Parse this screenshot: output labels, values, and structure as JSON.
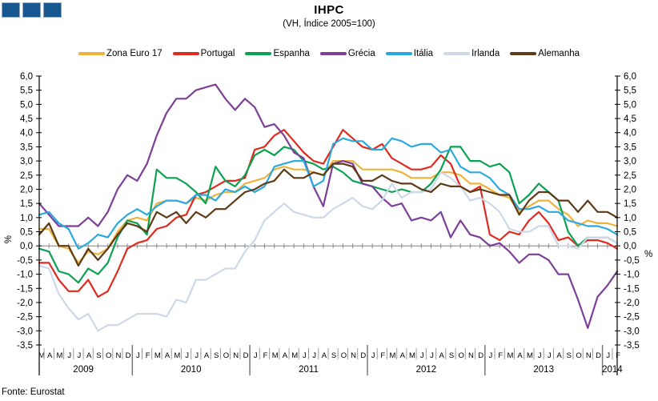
{
  "header": {
    "title": "IHPC",
    "subtitle": "(VH, Índice 2005=100)"
  },
  "logo": {
    "color": "#16578F",
    "square_count": 3
  },
  "source": {
    "label": "Fonte: Eurostat"
  },
  "chart_data": {
    "type": "line",
    "title": "IHPC",
    "subtitle": "(VH, Índice 2005=100)",
    "xlabel": "",
    "ylabel_left": "%",
    "ylabel_right": "%",
    "ylim": [
      -3.5,
      6.0
    ],
    "ytick_step": 0.5,
    "y_tick_labels": [
      "6,0",
      "5,5",
      "5,0",
      "4,5",
      "4,0",
      "3,5",
      "3,0",
      "2,5",
      "2,0",
      "1,5",
      "1,0",
      "0,5",
      "0,0",
      "-0,5",
      "-1,0",
      "-1,5",
      "-2,0",
      "-2,5",
      "-3,0",
      "-3,5"
    ],
    "grid": "zero-line-only",
    "legend_position": "top",
    "x_unit": "month (Mar 2009 - Feb 2014)",
    "x_months": [
      "M",
      "A",
      "M",
      "J",
      "J",
      "A",
      "S",
      "O",
      "N",
      "D",
      "J",
      "F",
      "M",
      "A",
      "M",
      "J",
      "J",
      "A",
      "S",
      "O",
      "N",
      "D",
      "J",
      "F",
      "M",
      "A",
      "M",
      "J",
      "J",
      "A",
      "S",
      "O",
      "N",
      "D",
      "J",
      "F",
      "M",
      "A",
      "M",
      "J",
      "J",
      "A",
      "S",
      "O",
      "N",
      "D",
      "J",
      "F",
      "M",
      "A",
      "M",
      "J",
      "J",
      "A",
      "S",
      "O",
      "N",
      "D",
      "J",
      "F"
    ],
    "x_years": [
      {
        "label": "2009",
        "start": 0,
        "count": 10
      },
      {
        "label": "2010",
        "start": 10,
        "count": 12
      },
      {
        "label": "2011",
        "start": 22,
        "count": 12
      },
      {
        "label": "2012",
        "start": 34,
        "count": 12
      },
      {
        "label": "2013",
        "start": 46,
        "count": 12
      },
      {
        "label": "2014",
        "start": 58,
        "count": 2
      }
    ],
    "series": [
      {
        "name": "Zona Euro 17",
        "color": "#EDB33C",
        "values": [
          0.6,
          0.6,
          0.0,
          -0.1,
          -0.6,
          -0.2,
          -0.3,
          -0.1,
          0.5,
          0.9,
          1.0,
          0.9,
          1.5,
          1.6,
          1.6,
          1.5,
          1.7,
          1.6,
          1.8,
          1.9,
          1.9,
          2.2,
          2.3,
          2.4,
          2.7,
          2.8,
          2.7,
          2.7,
          2.6,
          2.5,
          3.0,
          3.0,
          3.0,
          2.7,
          2.7,
          2.7,
          2.7,
          2.6,
          2.4,
          2.4,
          2.4,
          2.6,
          2.6,
          2.5,
          2.2,
          2.2,
          2.0,
          1.8,
          1.7,
          1.2,
          1.4,
          1.6,
          1.6,
          1.3,
          1.1,
          0.7,
          0.9,
          0.8,
          0.8,
          0.7
        ]
      },
      {
        "name": "Portugal",
        "color": "#E02A20",
        "values": [
          -0.6,
          -0.6,
          -1.2,
          -1.6,
          -1.6,
          -1.2,
          -1.8,
          -1.6,
          -0.9,
          -0.1,
          0.1,
          0.2,
          0.6,
          0.7,
          1.0,
          1.1,
          1.8,
          1.9,
          2.1,
          2.3,
          2.3,
          2.4,
          3.4,
          3.5,
          3.9,
          4.1,
          3.7,
          3.3,
          3.0,
          2.9,
          3.5,
          4.1,
          3.8,
          3.5,
          3.4,
          3.6,
          3.1,
          2.9,
          2.7,
          2.7,
          2.8,
          3.2,
          2.9,
          2.1,
          1.9,
          2.1,
          0.4,
          0.2,
          0.5,
          0.4,
          0.9,
          1.2,
          0.8,
          0.2,
          0.3,
          0.0,
          0.2,
          0.2,
          0.1,
          -0.1
        ]
      },
      {
        "name": "Espanha",
        "color": "#0CA252",
        "values": [
          -0.1,
          -0.2,
          -0.9,
          -1.0,
          -1.3,
          -0.8,
          -1.0,
          -0.6,
          0.3,
          0.9,
          0.8,
          0.4,
          2.7,
          2.4,
          2.4,
          2.2,
          1.9,
          1.5,
          2.8,
          2.3,
          2.1,
          2.5,
          3.2,
          3.4,
          3.2,
          3.5,
          3.4,
          3.0,
          2.9,
          2.7,
          2.8,
          2.6,
          2.3,
          2.2,
          2.1,
          2.0,
          1.9,
          2.0,
          1.9,
          1.9,
          2.2,
          2.7,
          3.5,
          3.5,
          3.0,
          3.0,
          2.8,
          2.9,
          2.6,
          1.5,
          1.8,
          2.2,
          1.9,
          1.6,
          0.5,
          0.0,
          0.3,
          0.3,
          0.3,
          0.1
        ]
      },
      {
        "name": "Grécia",
        "color": "#7D3F98",
        "values": [
          1.5,
          1.1,
          0.7,
          0.7,
          0.7,
          1.0,
          0.7,
          1.2,
          2.0,
          2.5,
          2.3,
          2.9,
          3.9,
          4.7,
          5.2,
          5.2,
          5.5,
          5.6,
          5.7,
          5.2,
          4.8,
          5.2,
          4.9,
          4.2,
          4.3,
          3.9,
          3.3,
          3.1,
          2.1,
          1.4,
          2.9,
          3.0,
          2.9,
          2.2,
          2.1,
          1.7,
          1.4,
          1.5,
          0.9,
          1.0,
          0.9,
          1.2,
          0.3,
          0.9,
          0.4,
          0.3,
          0.0,
          0.1,
          -0.2,
          -0.6,
          -0.3,
          -0.3,
          -0.5,
          -1.0,
          -1.0,
          -1.9,
          -2.9,
          -1.8,
          -1.4,
          -0.9
        ]
      },
      {
        "name": "Itália",
        "color": "#2BA9E0",
        "values": [
          1.1,
          1.2,
          0.8,
          0.6,
          -0.1,
          0.1,
          0.4,
          0.3,
          0.8,
          1.1,
          1.3,
          1.1,
          1.4,
          1.6,
          1.6,
          1.5,
          1.8,
          1.8,
          1.6,
          2.0,
          1.9,
          2.1,
          1.9,
          2.1,
          2.8,
          2.9,
          3.0,
          3.0,
          2.1,
          2.3,
          3.6,
          3.8,
          3.7,
          3.7,
          3.4,
          3.4,
          3.8,
          3.7,
          3.5,
          3.6,
          3.6,
          3.3,
          3.4,
          2.8,
          2.6,
          2.6,
          2.4,
          2.0,
          1.8,
          1.3,
          1.3,
          1.4,
          1.2,
          1.2,
          0.9,
          0.8,
          0.7,
          0.7,
          0.6,
          0.4
        ]
      },
      {
        "name": "Irlanda",
        "color": "#CDD8E8",
        "values": [
          -0.7,
          -0.8,
          -1.7,
          -2.2,
          -2.6,
          -2.4,
          -3.0,
          -2.8,
          -2.8,
          -2.6,
          -2.4,
          -2.4,
          -2.4,
          -2.5,
          -1.9,
          -2.0,
          -1.2,
          -1.2,
          -1.0,
          -0.8,
          -0.8,
          -0.2,
          0.2,
          0.9,
          1.2,
          1.5,
          1.2,
          1.1,
          1.0,
          1.0,
          1.3,
          1.5,
          1.7,
          1.4,
          1.3,
          1.6,
          2.2,
          1.7,
          1.9,
          1.9,
          2.0,
          2.6,
          2.4,
          2.1,
          1.6,
          1.7,
          1.5,
          1.2,
          0.6,
          0.5,
          0.5,
          0.7,
          0.7,
          0.0,
          0.0,
          -0.1,
          0.3,
          0.3,
          0.3,
          0.1
        ]
      },
      {
        "name": "Alemanha",
        "color": "#5E3A16",
        "values": [
          0.4,
          0.8,
          0.0,
          0.0,
          -0.7,
          -0.1,
          -0.5,
          -0.1,
          0.4,
          0.8,
          0.7,
          0.5,
          1.2,
          1.0,
          1.2,
          0.8,
          1.2,
          1.0,
          1.3,
          1.3,
          1.6,
          1.9,
          2.0,
          2.2,
          2.3,
          2.7,
          2.4,
          2.4,
          2.6,
          2.5,
          2.9,
          2.9,
          2.8,
          2.3,
          2.3,
          2.5,
          2.3,
          2.2,
          2.2,
          2.0,
          1.9,
          2.2,
          2.1,
          2.1,
          1.9,
          2.0,
          1.9,
          1.8,
          1.8,
          1.1,
          1.6,
          1.9,
          1.9,
          1.6,
          1.6,
          1.2,
          1.6,
          1.2,
          1.2,
          1.0
        ]
      }
    ]
  }
}
